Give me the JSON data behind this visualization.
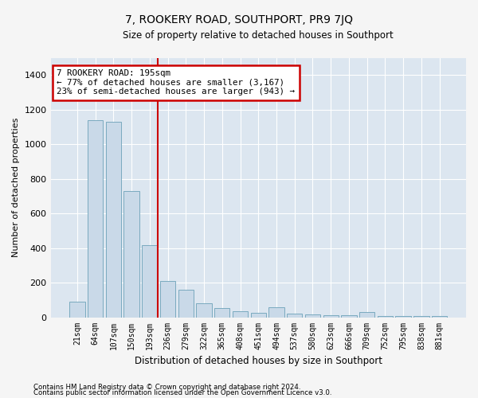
{
  "title": "7, ROOKERY ROAD, SOUTHPORT, PR9 7JQ",
  "subtitle": "Size of property relative to detached houses in Southport",
  "xlabel": "Distribution of detached houses by size in Southport",
  "ylabel": "Number of detached properties",
  "categories": [
    "21sqm",
    "64sqm",
    "107sqm",
    "150sqm",
    "193sqm",
    "236sqm",
    "279sqm",
    "322sqm",
    "365sqm",
    "408sqm",
    "451sqm",
    "494sqm",
    "537sqm",
    "580sqm",
    "623sqm",
    "666sqm",
    "709sqm",
    "752sqm",
    "795sqm",
    "838sqm",
    "881sqm"
  ],
  "values": [
    90,
    1140,
    1130,
    730,
    415,
    210,
    160,
    80,
    55,
    35,
    25,
    60,
    20,
    15,
    10,
    10,
    30,
    5,
    5,
    5,
    5
  ],
  "bar_color": "#c9d9e8",
  "bar_edge_color": "#7aaabf",
  "vline_color": "#cc0000",
  "property_label": "7 ROOKERY ROAD: 195sqm",
  "annotation_line1": "← 77% of detached houses are smaller (3,167)",
  "annotation_line2": "23% of semi-detached houses are larger (943) →",
  "vline_bar_index": 4,
  "ylim": [
    0,
    1500
  ],
  "yticks": [
    0,
    200,
    400,
    600,
    800,
    1000,
    1200,
    1400
  ],
  "footer_line1": "Contains HM Land Registry data © Crown copyright and database right 2024.",
  "footer_line2": "Contains public sector information licensed under the Open Government Licence v3.0.",
  "fig_bg_color": "#f5f5f5",
  "plot_bg_color": "#dce6f0"
}
